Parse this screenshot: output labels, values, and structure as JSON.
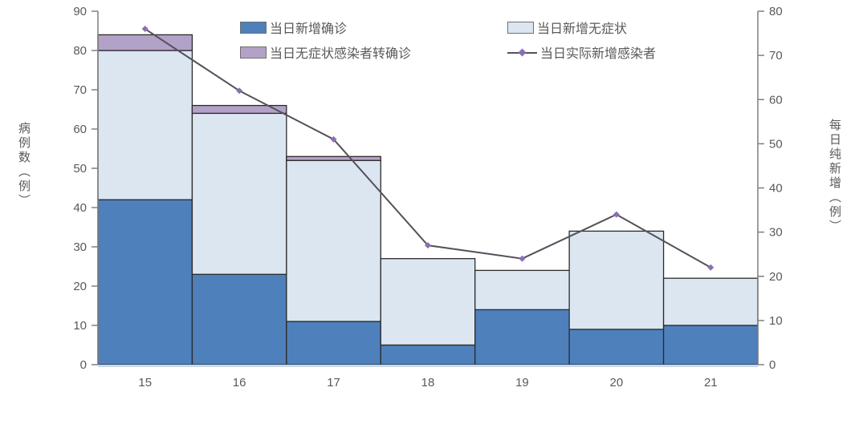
{
  "chart_data": {
    "type": "bar",
    "subtype": "stacked-bar-with-line-combo",
    "categories": [
      "15",
      "16",
      "17",
      "18",
      "19",
      "20",
      "21"
    ],
    "series": [
      {
        "name": "当日新增确诊",
        "type": "bar",
        "stack": true,
        "color": "#4E80BC",
        "values": [
          42,
          23,
          11,
          5,
          14,
          9,
          10
        ]
      },
      {
        "name": "当日新增无症状",
        "type": "bar",
        "stack": true,
        "color": "#DCE6F1",
        "values": [
          38,
          41,
          41,
          22,
          10,
          25,
          12
        ]
      },
      {
        "name": "当日无症状感染者转确诊",
        "type": "bar",
        "stack": true,
        "color": "#B3A2C7",
        "values": [
          4,
          2,
          1,
          0,
          0,
          0,
          0
        ]
      },
      {
        "name": "当日实际新增感染者",
        "type": "line",
        "axis": "right",
        "color": "#55505C",
        "marker_color": "#8A6FB4",
        "values": [
          76,
          62,
          51,
          27,
          24,
          34,
          22
        ]
      }
    ],
    "stacked_totals": [
      84,
      66,
      53,
      27,
      24,
      34,
      22
    ],
    "left_axis": {
      "label": "病例数（例）",
      "min": 0,
      "max": 90,
      "step": 10,
      "ticks": [
        0,
        10,
        20,
        30,
        40,
        50,
        60,
        70,
        80,
        90
      ]
    },
    "right_axis": {
      "label": "每日纯新增（例）",
      "min": 0,
      "max": 80,
      "step": 10,
      "ticks": [
        0,
        10,
        20,
        30,
        40,
        50,
        60,
        70,
        80
      ]
    },
    "legend_position": "top-center",
    "grid": false
  },
  "colors": {
    "bar_border": "#2b2b2b",
    "axis_line": "#7f7f7f",
    "tick": "#808080",
    "text": "#595959",
    "baseline_strip": "#c5d9f1",
    "background": "#ffffff"
  }
}
